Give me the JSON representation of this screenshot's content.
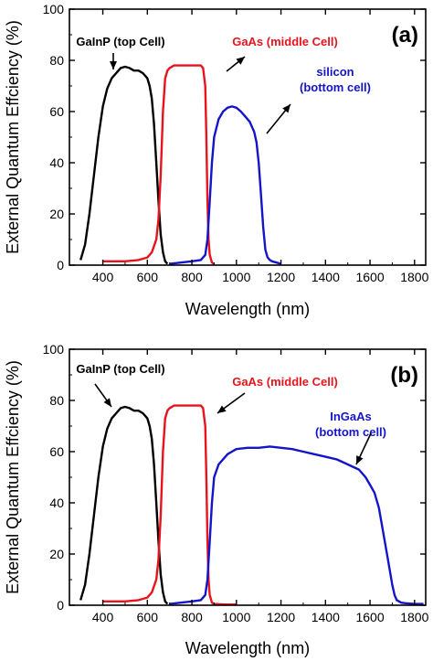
{
  "colors": {
    "top_cell": "#000000",
    "middle_cell": "#e8131c",
    "bottom_cell": "#1414c8",
    "axis": "#000000"
  },
  "chart_data": [
    {
      "type": "line",
      "panel_label": "(a)",
      "xlabel": "Wavelength (nm)",
      "ylabel": "External Quantum Effciency (%)",
      "xlim": [
        250,
        1850
      ],
      "ylim": [
        0,
        100
      ],
      "xticks": [
        400,
        600,
        800,
        1000,
        1200,
        1400,
        1600,
        1800
      ],
      "yticks": [
        0,
        20,
        40,
        60,
        80,
        100
      ],
      "grid": false,
      "legend": "none",
      "series": [
        {
          "name": "GaInP (top Cell)",
          "color": "#000000",
          "x": [
            300,
            320,
            340,
            360,
            380,
            400,
            420,
            440,
            460,
            480,
            500,
            520,
            540,
            560,
            580,
            600,
            610,
            620,
            630,
            640,
            650,
            660,
            670,
            680,
            690
          ],
          "y": [
            2,
            8,
            20,
            35,
            50,
            62,
            69,
            73,
            75,
            77,
            77.5,
            77,
            76,
            76,
            75,
            73,
            70,
            65,
            55,
            40,
            25,
            12,
            5,
            1.5,
            0.5
          ]
        },
        {
          "name": "GaAs (middle Cell)",
          "color": "#e8131c",
          "x": [
            400,
            500,
            560,
            600,
            620,
            640,
            650,
            660,
            670,
            680,
            690,
            700,
            720,
            750,
            780,
            800,
            820,
            840,
            850,
            860,
            865,
            870,
            875,
            880,
            890,
            900
          ],
          "y": [
            1.5,
            1.5,
            2,
            3,
            5,
            10,
            18,
            35,
            60,
            73,
            76,
            77,
            78,
            78,
            78,
            78,
            78,
            78,
            77,
            70,
            50,
            25,
            10,
            4,
            1,
            0.5
          ]
        },
        {
          "name": "silicon (bottom cell)",
          "color": "#1414c8",
          "x": [
            700,
            750,
            800,
            840,
            860,
            870,
            880,
            890,
            900,
            920,
            940,
            960,
            980,
            1000,
            1020,
            1040,
            1060,
            1080,
            1090,
            1100,
            1110,
            1120,
            1130,
            1140,
            1150,
            1160,
            1180,
            1200
          ],
          "y": [
            0.5,
            1,
            1.5,
            2,
            4,
            10,
            25,
            40,
            50,
            57,
            60,
            61.5,
            62,
            61.5,
            60,
            58,
            56,
            52,
            48,
            40,
            28,
            15,
            6,
            3,
            2,
            1.5,
            1,
            0.5
          ]
        }
      ],
      "annotations": [
        {
          "text": "GaInP (top Cell)",
          "lines": [
            "GaInP (top Cell)"
          ],
          "color": "#000000"
        },
        {
          "text": "GaAs (middle Cell)",
          "lines": [
            "GaAs (middle Cell)"
          ],
          "color": "#e8131c"
        },
        {
          "text": "silicon (bottom cell)",
          "lines": [
            "silicon",
            "(bottom cell)"
          ],
          "color": "#1414c8"
        }
      ]
    },
    {
      "type": "line",
      "panel_label": "(b)",
      "xlabel": "Wavelength (nm)",
      "ylabel": "External Quantum Effciency (%)",
      "xlim": [
        250,
        1850
      ],
      "ylim": [
        0,
        100
      ],
      "xticks": [
        400,
        600,
        800,
        1000,
        1200,
        1400,
        1600,
        1800
      ],
      "yticks": [
        0,
        20,
        40,
        60,
        80,
        100
      ],
      "grid": false,
      "legend": "none",
      "series": [
        {
          "name": "GaInP (top Cell)",
          "color": "#000000",
          "x": [
            300,
            320,
            340,
            360,
            380,
            400,
            420,
            440,
            460,
            480,
            500,
            520,
            540,
            560,
            580,
            600,
            610,
            620,
            630,
            640,
            650,
            660,
            670,
            680,
            690
          ],
          "y": [
            2,
            8,
            20,
            35,
            50,
            62,
            69,
            73,
            75,
            77,
            77.5,
            77,
            76,
            76,
            75,
            73,
            70,
            65,
            55,
            40,
            25,
            12,
            5,
            1.5,
            0.5
          ]
        },
        {
          "name": "GaAs (middle Cell)",
          "color": "#e8131c",
          "x": [
            400,
            500,
            560,
            600,
            620,
            640,
            650,
            660,
            670,
            680,
            690,
            700,
            720,
            750,
            780,
            800,
            820,
            840,
            850,
            860,
            865,
            870,
            875,
            880,
            890,
            900,
            950,
            1000
          ],
          "y": [
            1.5,
            1.5,
            2,
            3,
            5,
            10,
            18,
            35,
            60,
            73,
            76,
            77,
            78,
            78,
            78,
            78,
            78,
            78,
            77,
            70,
            50,
            25,
            10,
            4,
            1,
            0.5,
            0.3,
            0.3
          ]
        },
        {
          "name": "InGaAs (bottom cell)",
          "color": "#1414c8",
          "x": [
            700,
            750,
            800,
            840,
            860,
            870,
            880,
            890,
            900,
            920,
            940,
            960,
            980,
            1000,
            1050,
            1100,
            1150,
            1200,
            1250,
            1300,
            1350,
            1400,
            1450,
            1500,
            1550,
            1580,
            1600,
            1620,
            1640,
            1660,
            1680,
            1700,
            1710,
            1720,
            1740,
            1760,
            1800,
            1840
          ],
          "y": [
            0.5,
            1,
            1.5,
            2,
            4,
            10,
            25,
            40,
            50,
            55,
            57,
            59,
            60,
            61,
            61.5,
            61.5,
            62,
            61.5,
            61,
            60,
            59,
            58,
            57,
            55,
            53,
            50,
            47,
            44,
            38,
            28,
            18,
            8,
            4,
            2,
            1,
            0.8,
            0.5,
            0.5
          ]
        }
      ],
      "annotations": [
        {
          "text": "GaInP (top Cell)",
          "lines": [
            "GaInP (top Cell)"
          ],
          "color": "#000000"
        },
        {
          "text": "GaAs (middle Cell)",
          "lines": [
            "GaAs (middle Cell)"
          ],
          "color": "#e8131c"
        },
        {
          "text": "InGaAs (bottom cell)",
          "lines": [
            "InGaAs",
            "(bottom cell)"
          ],
          "color": "#1414c8"
        }
      ]
    }
  ]
}
